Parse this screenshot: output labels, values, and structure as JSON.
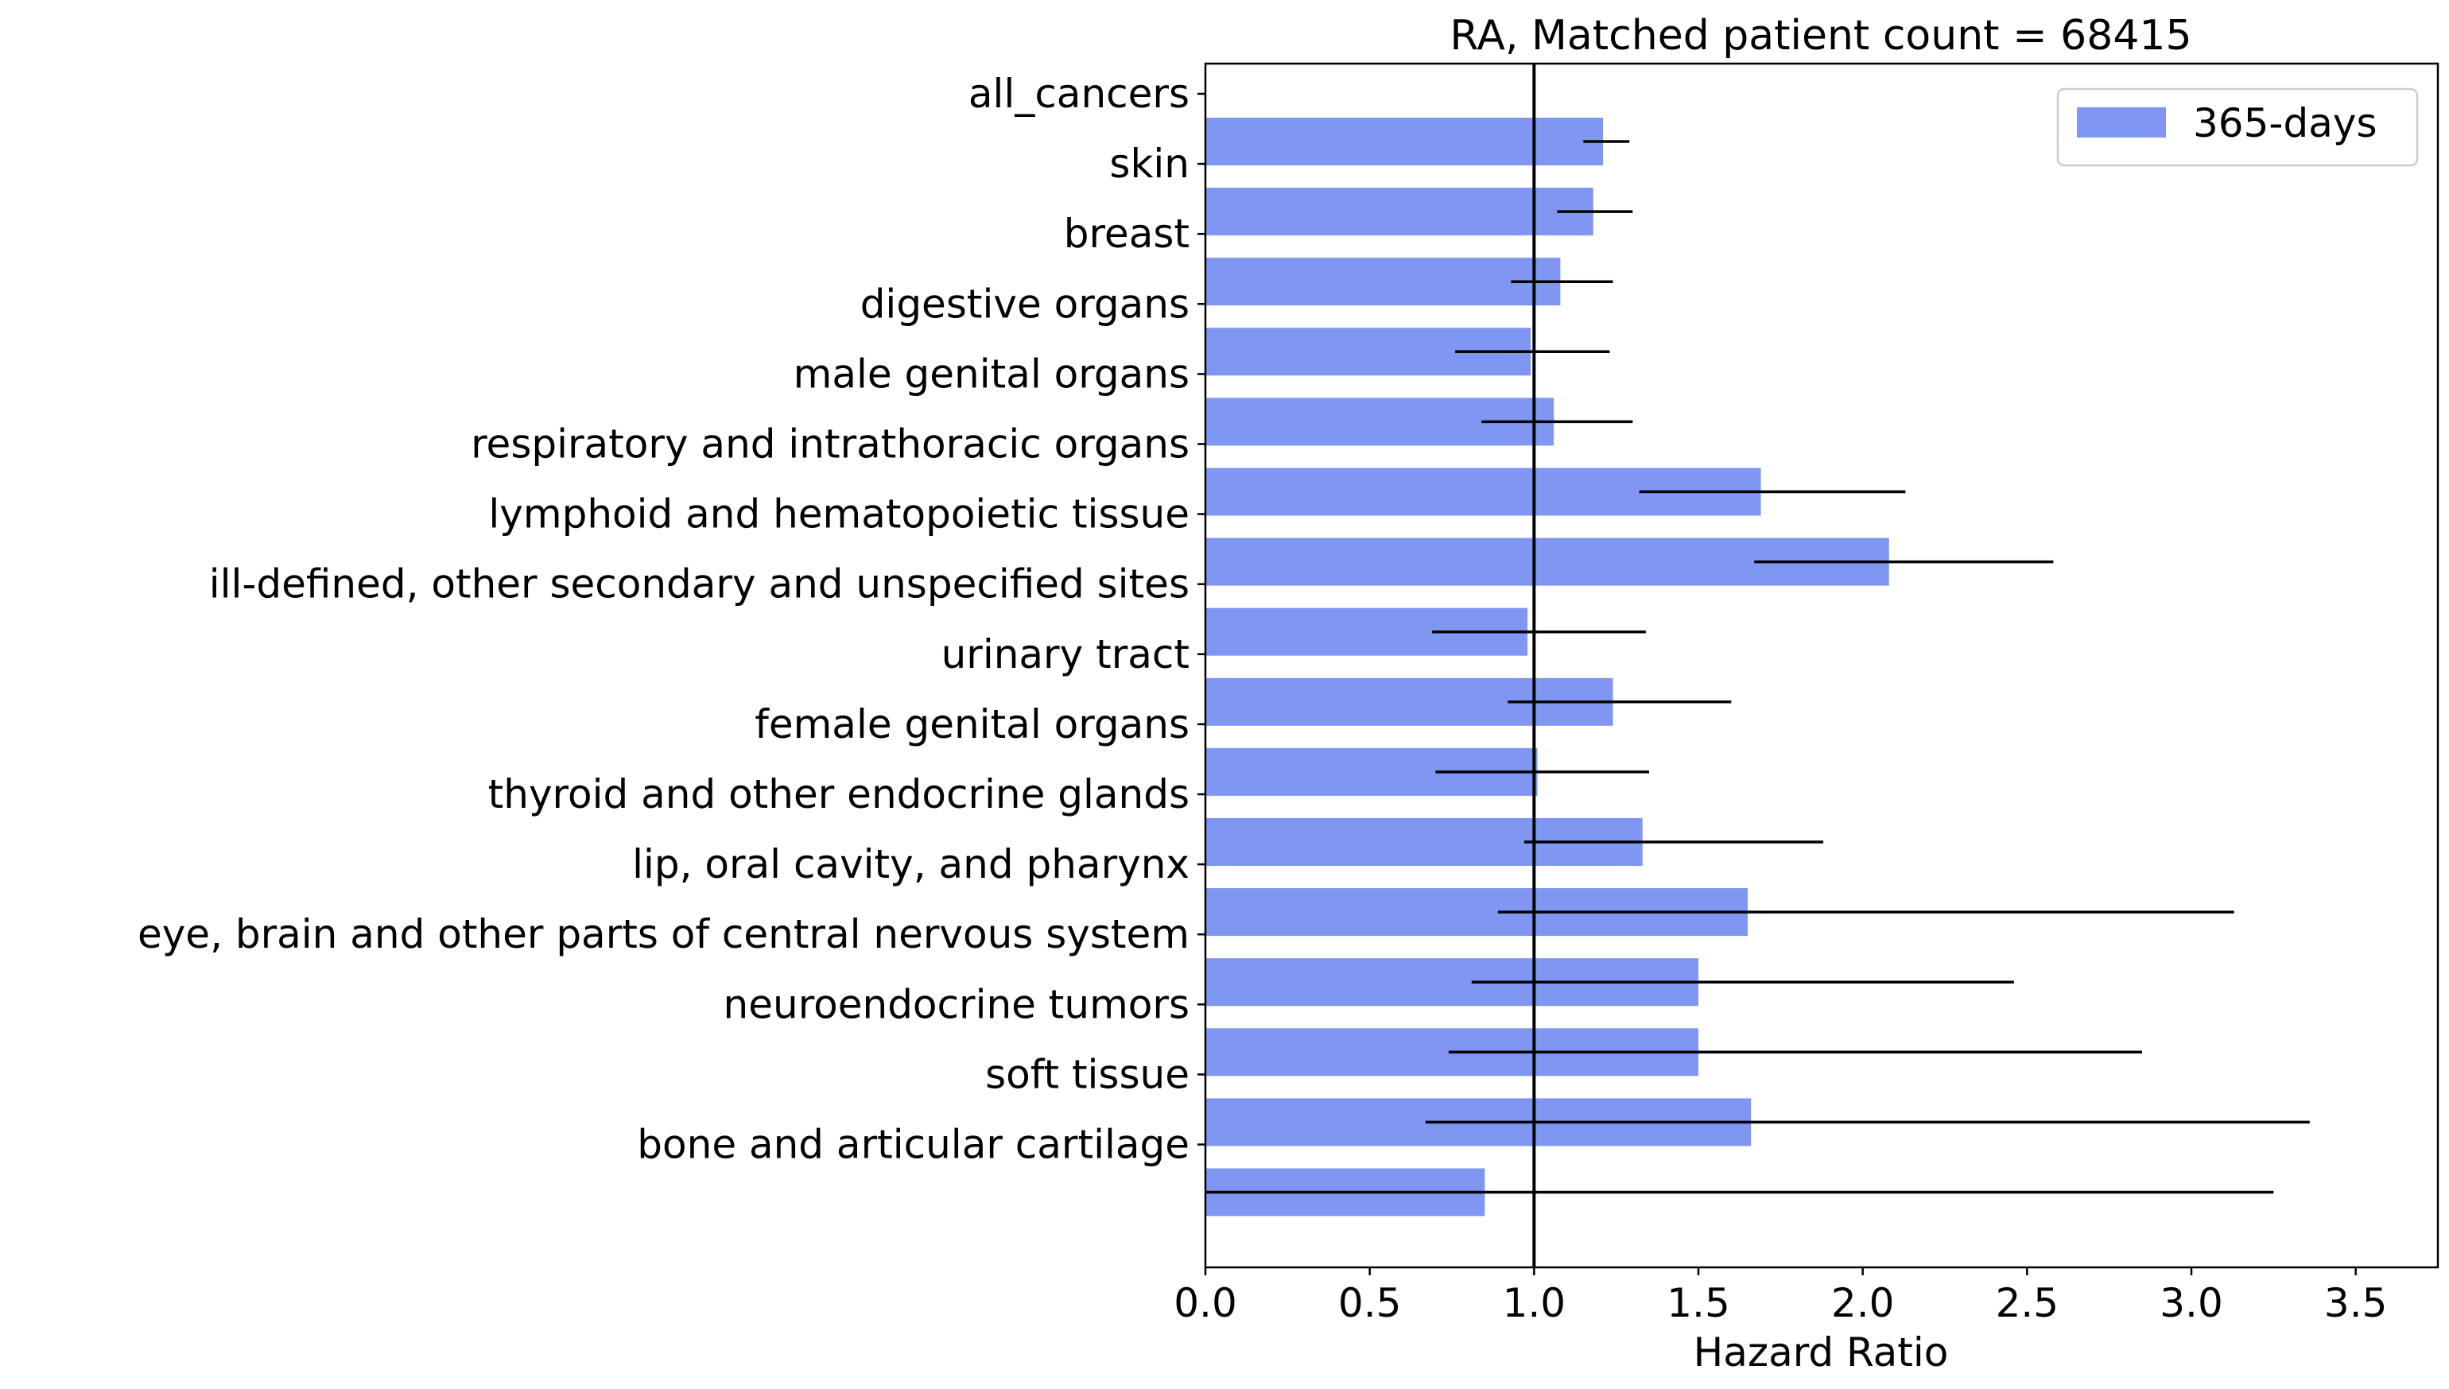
{
  "chart_data": {
    "type": "bar",
    "orientation": "horizontal",
    "title": "RA, Matched patient count = 68415",
    "xlabel": "Hazard Ratio",
    "ylabel": "",
    "xlim": [
      0,
      3.75
    ],
    "xticks": [
      0.0,
      0.5,
      1.0,
      1.5,
      2.0,
      2.5,
      3.0,
      3.5
    ],
    "xtick_labels": [
      "0.0",
      "0.5",
      "1.0",
      "1.5",
      "2.0",
      "2.5",
      "3.0",
      "3.5"
    ],
    "reference_line": 1.0,
    "grid": false,
    "legend": {
      "placement": "top-right",
      "entries": [
        "365-days"
      ]
    },
    "categories": [
      "all_cancers",
      "skin",
      "breast",
      "digestive organs",
      "male genital organs",
      "respiratory and intrathoracic organs",
      "lymphoid and hematopoietic tissue",
      "ill-defined, other secondary and unspecified sites",
      "urinary tract",
      "female genital organs",
      "thyroid and other endocrine glands",
      "lip, oral cavity, and pharynx",
      "eye, brain and other parts of central nervous system",
      "neuroendocrine tumors",
      "soft tissue",
      "bone and articular cartilage"
    ],
    "series": [
      {
        "name": "365-days",
        "color": "#7f96f2",
        "values": [
          1.21,
          1.18,
          1.08,
          0.99,
          1.06,
          1.69,
          2.08,
          0.98,
          1.24,
          1.01,
          1.33,
          1.65,
          1.5,
          1.5,
          1.66,
          0.85
        ],
        "ci_low": [
          1.15,
          1.07,
          0.93,
          0.76,
          0.84,
          1.32,
          1.67,
          0.69,
          0.92,
          0.7,
          0.97,
          0.89,
          0.81,
          0.74,
          0.67,
          0.0
        ],
        "ci_high": [
          1.29,
          1.3,
          1.24,
          1.23,
          1.3,
          2.13,
          2.58,
          1.34,
          1.6,
          1.35,
          1.88,
          3.13,
          2.46,
          2.85,
          3.36,
          3.25
        ]
      }
    ]
  }
}
